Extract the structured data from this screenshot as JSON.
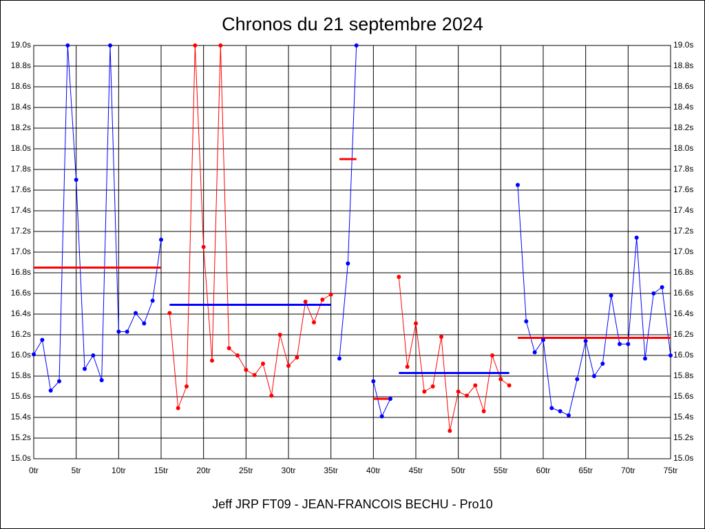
{
  "chart_data": {
    "type": "line",
    "title": "Chronos du 21 septembre 2024",
    "xlabel": "Jeff JRP FT09 - JEAN-FRANCOIS BECHU - Pro10",
    "xlim": [
      0,
      75
    ],
    "xticks": [
      {
        "value": 0,
        "label": "0tr"
      },
      {
        "value": 5,
        "label": "5tr"
      },
      {
        "value": 10,
        "label": "10tr"
      },
      {
        "value": 15,
        "label": "15tr"
      },
      {
        "value": 20,
        "label": "20tr"
      },
      {
        "value": 25,
        "label": "25tr"
      },
      {
        "value": 30,
        "label": "30tr"
      },
      {
        "value": 35,
        "label": "35tr"
      },
      {
        "value": 40,
        "label": "40tr"
      },
      {
        "value": 45,
        "label": "45tr"
      },
      {
        "value": 50,
        "label": "50tr"
      },
      {
        "value": 55,
        "label": "55tr"
      },
      {
        "value": 60,
        "label": "60tr"
      },
      {
        "value": 65,
        "label": "65tr"
      },
      {
        "value": 70,
        "label": "70tr"
      },
      {
        "value": 75,
        "label": "75tr"
      }
    ],
    "ylim": [
      15,
      19
    ],
    "yticks": [
      {
        "value": 15,
        "label": "15.0s"
      },
      {
        "value": 15.2,
        "label": "15.2s"
      },
      {
        "value": 15.4,
        "label": "15.4s"
      },
      {
        "value": 15.6,
        "label": "15.6s"
      },
      {
        "value": 15.8,
        "label": "15.8s"
      },
      {
        "value": 16,
        "label": "16.0s"
      },
      {
        "value": 16.2,
        "label": "16.2s"
      },
      {
        "value": 16.4,
        "label": "16.4s"
      },
      {
        "value": 16.6,
        "label": "16.6s"
      },
      {
        "value": 16.8,
        "label": "16.8s"
      },
      {
        "value": 17,
        "label": "17.0s"
      },
      {
        "value": 17.2,
        "label": "17.2s"
      },
      {
        "value": 17.4,
        "label": "17.4s"
      },
      {
        "value": 17.6,
        "label": "17.6s"
      },
      {
        "value": 17.8,
        "label": "17.8s"
      },
      {
        "value": 18,
        "label": "18.0s"
      },
      {
        "value": 18.2,
        "label": "18.2s"
      },
      {
        "value": 18.4,
        "label": "18.4s"
      },
      {
        "value": 18.6,
        "label": "18.6s"
      },
      {
        "value": 18.8,
        "label": "18.8s"
      },
      {
        "value": 19,
        "label": "19.0s"
      }
    ],
    "grid": true,
    "series": [
      {
        "color": "#0000ff",
        "average": 16.85,
        "average_color": "#ff0000",
        "x": [
          0,
          1,
          2,
          3,
          4,
          5,
          6,
          7,
          8,
          9,
          10,
          11,
          12,
          13,
          14,
          15
        ],
        "values": [
          16.01,
          16.15,
          15.66,
          15.75,
          19.0,
          17.7,
          15.87,
          16.0,
          15.76,
          19.0,
          16.23,
          16.23,
          16.41,
          16.31,
          16.53,
          17.12
        ]
      },
      {
        "color": "#ff0000",
        "average": 16.49,
        "average_color": "#0000ff",
        "x": [
          16,
          17,
          18,
          19,
          20,
          21,
          22,
          23,
          24,
          25,
          26,
          27,
          28,
          29,
          30,
          31,
          32,
          33,
          34,
          35
        ],
        "values": [
          16.41,
          15.49,
          15.7,
          19.0,
          17.05,
          15.95,
          19.0,
          16.07,
          16.0,
          15.86,
          15.81,
          15.92,
          15.61,
          16.2,
          15.9,
          15.98,
          16.52,
          16.32,
          16.54,
          16.59
        ]
      },
      {
        "color": "#0000ff",
        "average": 17.9,
        "average_color": "#ff0000",
        "x": [
          36,
          37,
          38
        ],
        "values": [
          15.97,
          16.89,
          19.0
        ]
      },
      {
        "color": "#0000ff",
        "average": 15.58,
        "average_color": "#ff0000",
        "x": [
          40,
          41,
          42
        ],
        "values": [
          15.75,
          15.41,
          15.58
        ]
      },
      {
        "color": "#ff0000",
        "average": 15.83,
        "average_color": "#0000ff",
        "x": [
          43,
          44,
          45,
          46,
          47,
          48,
          49,
          50,
          51,
          52,
          53,
          54,
          55,
          56
        ],
        "values": [
          16.76,
          15.89,
          16.31,
          15.65,
          15.7,
          16.18,
          15.27,
          15.65,
          15.61,
          15.71,
          15.46,
          16.0,
          15.77,
          15.71
        ]
      },
      {
        "color": "#0000ff",
        "average": 16.17,
        "average_color": "#ff0000",
        "x": [
          57,
          58,
          59,
          60,
          61,
          62,
          63,
          64,
          65,
          66,
          67,
          68,
          69,
          70,
          71,
          72,
          73,
          74,
          75
        ],
        "values": [
          17.65,
          16.33,
          16.03,
          16.15,
          15.49,
          15.46,
          15.42,
          15.77,
          16.14,
          15.8,
          15.92,
          16.58,
          16.11,
          16.11,
          17.14,
          15.97,
          16.6,
          16.66,
          16.0
        ]
      }
    ]
  }
}
